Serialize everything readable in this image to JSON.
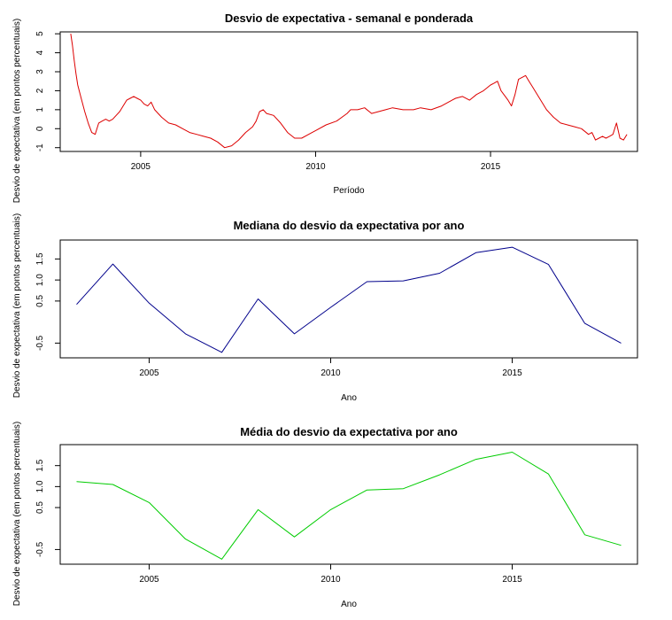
{
  "chart_data": [
    {
      "type": "line",
      "title": "Desvio de expectativa - semanal e ponderada",
      "xlabel": "Período",
      "ylabel": "Desvio de expectativa (em pontos percentuais)",
      "xlim": [
        2002.7,
        2019.2
      ],
      "ylim": [
        -1.2,
        5.1
      ],
      "x_ticks": [
        2005,
        2010,
        2015
      ],
      "x_tick_labels": [
        "2005",
        "2010",
        "2015"
      ],
      "y_ticks": [
        -1,
        0,
        1,
        2,
        3,
        4,
        5
      ],
      "y_tick_labels": [
        "-1",
        "0",
        "1",
        "2",
        "3",
        "4",
        "5"
      ],
      "grid": false,
      "color": "#dd0000",
      "series": [
        {
          "x": [
            2003.0,
            2003.05,
            2003.1,
            2003.15,
            2003.2,
            2003.3,
            2003.4,
            2003.5,
            2003.6,
            2003.7,
            2003.8,
            2003.9,
            2004.0,
            2004.1,
            2004.2,
            2004.3,
            2004.4,
            2004.5,
            2004.6,
            2004.7,
            2004.8,
            2004.9,
            2005.0,
            2005.1,
            2005.2,
            2005.3,
            2005.4,
            2005.5,
            2005.6,
            2005.8,
            2006.0,
            2006.2,
            2006.4,
            2006.6,
            2006.8,
            2007.0,
            2007.2,
            2007.4,
            2007.6,
            2007.8,
            2008.0,
            2008.2,
            2008.3,
            2008.4,
            2008.5,
            2008.6,
            2008.8,
            2009.0,
            2009.2,
            2009.4,
            2009.6,
            2009.8,
            2010.0,
            2010.3,
            2010.6,
            2010.9,
            2011.0,
            2011.2,
            2011.4,
            2011.6,
            2011.8,
            2012.0,
            2012.2,
            2012.5,
            2012.8,
            2013.0,
            2013.3,
            2013.6,
            2013.9,
            2014.0,
            2014.2,
            2014.4,
            2014.6,
            2014.8,
            2015.0,
            2015.1,
            2015.2,
            2015.3,
            2015.5,
            2015.6,
            2015.7,
            2015.8,
            2016.0,
            2016.1,
            2016.2,
            2016.4,
            2016.6,
            2016.8,
            2017.0,
            2017.2,
            2017.4,
            2017.6,
            2017.8,
            2017.9,
            2018.0,
            2018.1,
            2018.2,
            2018.3,
            2018.4,
            2018.5,
            2018.6,
            2018.7,
            2018.8,
            2018.9
          ],
          "y": [
            5.0,
            4.4,
            3.6,
            2.9,
            2.3,
            1.6,
            0.9,
            0.3,
            -0.2,
            -0.3,
            0.3,
            0.4,
            0.5,
            0.4,
            0.5,
            0.7,
            0.9,
            1.2,
            1.5,
            1.6,
            1.7,
            1.6,
            1.5,
            1.3,
            1.2,
            1.4,
            1.0,
            0.8,
            0.6,
            0.3,
            0.2,
            0.0,
            -0.2,
            -0.3,
            -0.4,
            -0.5,
            -0.7,
            -1.0,
            -0.9,
            -0.6,
            -0.2,
            0.1,
            0.4,
            0.9,
            1.0,
            0.8,
            0.7,
            0.3,
            -0.2,
            -0.5,
            -0.5,
            -0.3,
            -0.1,
            0.2,
            0.4,
            0.8,
            1.0,
            1.0,
            1.1,
            0.8,
            0.9,
            1.0,
            1.1,
            1.0,
            1.0,
            1.1,
            1.0,
            1.2,
            1.5,
            1.6,
            1.7,
            1.5,
            1.8,
            2.0,
            2.3,
            2.4,
            2.5,
            2.0,
            1.5,
            1.2,
            1.8,
            2.6,
            2.8,
            2.5,
            2.2,
            1.6,
            1.0,
            0.6,
            0.3,
            0.2,
            0.1,
            0.0,
            -0.3,
            -0.2,
            -0.6,
            -0.5,
            -0.4,
            -0.5,
            -0.4,
            -0.3,
            0.3,
            -0.5,
            -0.6,
            -0.3
          ]
        }
      ]
    },
    {
      "type": "line",
      "title": "Mediana do desvio da expectativa por ano",
      "xlabel": "Ano",
      "ylabel": "Desvio de expectativa (em pontos percentuais)",
      "xlim": [
        2002.55,
        2018.45
      ],
      "ylim": [
        -0.85,
        1.95
      ],
      "x_ticks": [
        2005,
        2010,
        2015
      ],
      "x_tick_labels": [
        "2005",
        "2010",
        "2015"
      ],
      "y_ticks": [
        -0.5,
        0.5,
        1.0,
        1.5
      ],
      "y_tick_labels": [
        "-0.5",
        "0.5",
        "1.0",
        "1.5"
      ],
      "grid": false,
      "color": "#00008b",
      "series": [
        {
          "x": [
            2003,
            2004,
            2005,
            2006,
            2007,
            2008,
            2009,
            2010,
            2011,
            2012,
            2013,
            2014,
            2015,
            2016,
            2017,
            2018
          ],
          "y": [
            0.42,
            1.38,
            0.45,
            -0.28,
            -0.72,
            0.55,
            -0.28,
            0.35,
            0.96,
            0.98,
            1.16,
            1.65,
            1.78,
            1.37,
            -0.03,
            -0.5
          ]
        }
      ]
    },
    {
      "type": "line",
      "title": "Média do desvio da expectativa por ano",
      "xlabel": "Ano",
      "ylabel": "Desvio de expectativa (em pontos percentuais)",
      "xlim": [
        2002.55,
        2018.45
      ],
      "ylim": [
        -0.85,
        2.0
      ],
      "x_ticks": [
        2005,
        2010,
        2015
      ],
      "x_tick_labels": [
        "2005",
        "2010",
        "2015"
      ],
      "y_ticks": [
        -0.5,
        0.5,
        1.0,
        1.5
      ],
      "y_tick_labels": [
        "-0.5",
        "0.5",
        "1.0",
        "1.5"
      ],
      "grid": false,
      "color": "#00cc00",
      "series": [
        {
          "x": [
            2003,
            2004,
            2005,
            2006,
            2007,
            2008,
            2009,
            2010,
            2011,
            2012,
            2013,
            2014,
            2015,
            2016,
            2017,
            2018
          ],
          "y": [
            1.12,
            1.05,
            0.62,
            -0.25,
            -0.73,
            0.45,
            -0.2,
            0.45,
            0.92,
            0.95,
            1.28,
            1.65,
            1.82,
            1.3,
            -0.15,
            -0.4
          ]
        }
      ]
    }
  ]
}
